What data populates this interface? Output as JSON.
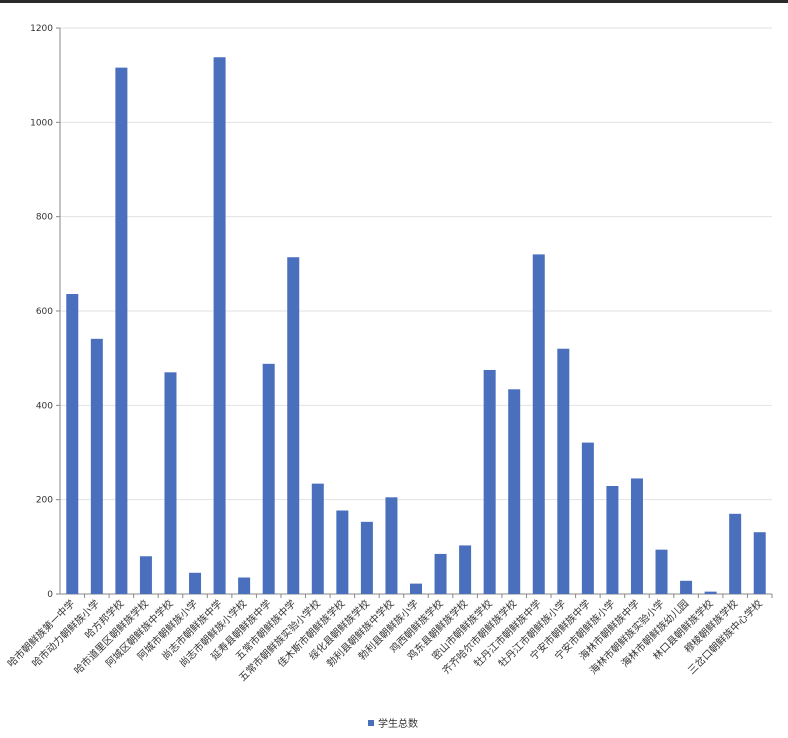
{
  "chart_data": {
    "type": "bar",
    "title": "",
    "xlabel": "",
    "ylabel": "",
    "ylim": [
      0,
      1200
    ],
    "yticks": [
      0,
      200,
      400,
      600,
      800,
      1000,
      1200
    ],
    "grid": true,
    "legend_position": "bottom",
    "color": "#4a6fbd",
    "categories": [
      "哈市朝鲜族第一中学",
      "哈市动力朝鲜族小学",
      "哈方邦学校",
      "哈市道里区朝鲜族学校",
      "阿城区朝鲜族中学校",
      "阿城市朝鲜族小学",
      "尚志市朝鲜族中学",
      "尚志市朝鲜族小学校",
      "延寿县朝鲜族中学",
      "五常市朝鲜族中学",
      "五常市朝鲜族实验小学校",
      "佳木斯市朝鲜族学校",
      "绥化县朝鲜族学校",
      "勃利县朝鲜族中学校",
      "勃利县朝鲜族小学",
      "鸡西朝鲜族学校",
      "鸡东县朝鲜族学校",
      "密山市朝鲜族学校",
      "齐齐哈尔市朝鲜族学校",
      "牡丹江市朝鲜族中学",
      "牡丹江市朝鲜族小学",
      "宁安市朝鲜族中学",
      "宁安市朝鲜族小学",
      "海林市朝鲜族中学",
      "海林市朝鲜族实验小学",
      "海林市朝鲜族幼儿园",
      "林口县朝鲜族学校",
      "穆棱朝鲜族学校",
      "三岔口朝鲜族中心学校"
    ],
    "series": [
      {
        "name": "学生总数",
        "values": [
          636,
          541,
          1116,
          80,
          470,
          45,
          1138,
          35,
          488,
          714,
          234,
          177,
          153,
          205,
          22,
          85,
          103,
          475,
          434,
          720,
          520,
          321,
          229,
          245,
          94,
          28,
          5,
          170,
          131
        ]
      }
    ]
  }
}
